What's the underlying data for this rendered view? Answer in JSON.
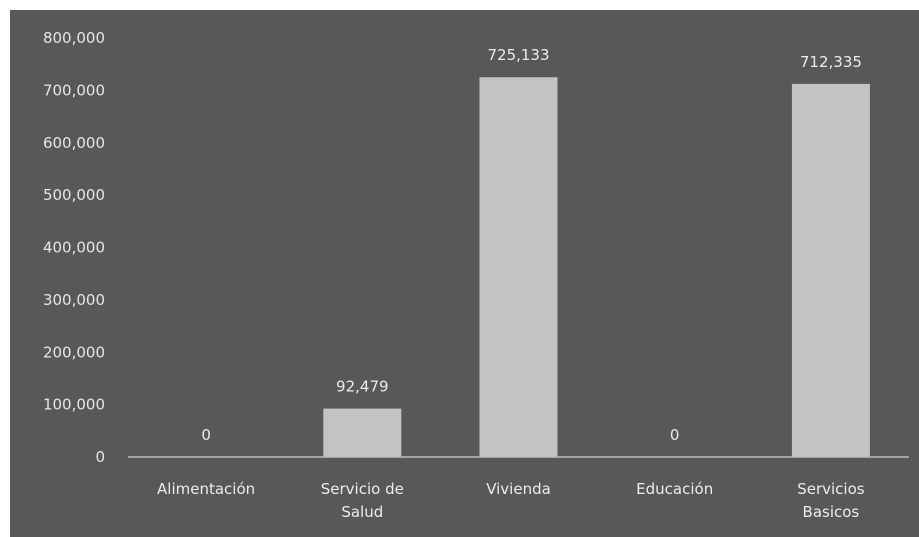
{
  "chart_data": {
    "type": "bar",
    "categories": [
      "Alimentación",
      "Servicio de Salud",
      "Vivienda",
      "Educación",
      "Servicios Basicos"
    ],
    "category_label_lines": [
      [
        "Alimentación"
      ],
      [
        "Servicio de",
        "Salud"
      ],
      [
        "Vivienda"
      ],
      [
        "Educación"
      ],
      [
        "Servicios",
        "Basicos"
      ]
    ],
    "values": [
      0,
      92479,
      725133,
      0,
      712335
    ],
    "data_labels": [
      "0",
      "92,479",
      "725,133",
      "0",
      "712,335"
    ],
    "y_ticks": [
      0,
      100000,
      200000,
      300000,
      400000,
      500000,
      600000,
      700000,
      800000
    ],
    "y_tick_labels": [
      "0",
      "100,000",
      "200,000",
      "300,000",
      "400,000",
      "500,000",
      "600,000",
      "700,000",
      "800,000"
    ],
    "ylim": [
      0,
      800000
    ],
    "title": "",
    "xlabel": "",
    "ylabel": "",
    "grid": false,
    "legend": "none",
    "colors": {
      "background": "#585858",
      "bar": "#c3c3c3",
      "text": "#ececec",
      "axis": "#bdbdbd"
    }
  }
}
